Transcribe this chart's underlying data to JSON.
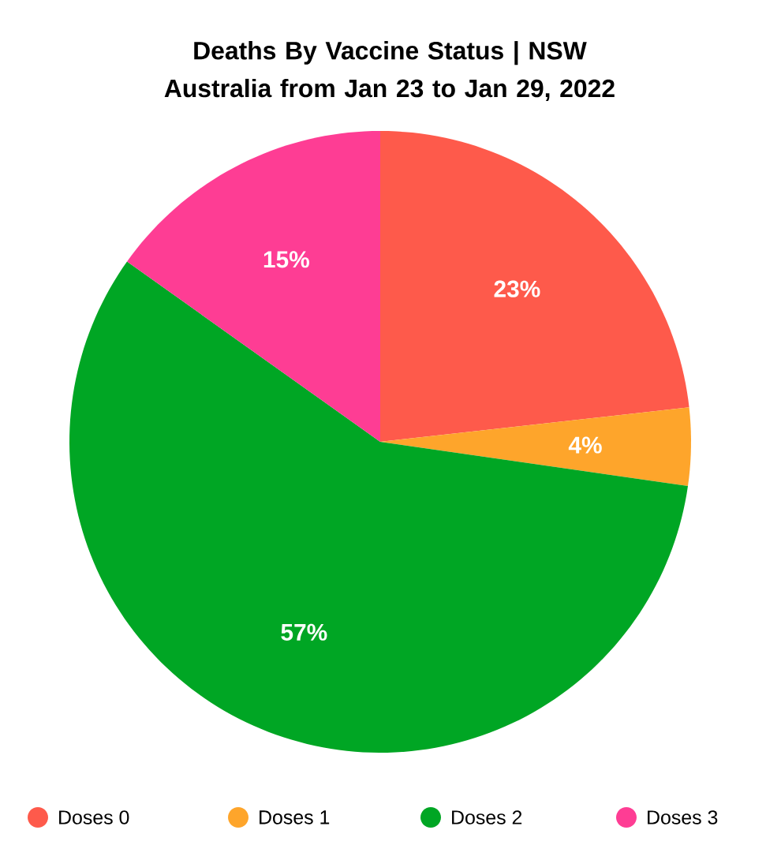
{
  "chart_data": {
    "type": "pie",
    "title": "Deaths By Vaccine Status | NSW Australia from Jan 23 to Jan 29, 2022",
    "categories": [
      "Doses 0",
      "Doses 1",
      "Doses 2",
      "Doses 3"
    ],
    "values": [
      23,
      4,
      57,
      15
    ],
    "value_labels": [
      "23%",
      "4%",
      "57%",
      "15%"
    ],
    "colors": [
      "#fe5a4b",
      "#fea52b",
      "#00a624",
      "#fe3d94"
    ],
    "legend": "bottom"
  }
}
